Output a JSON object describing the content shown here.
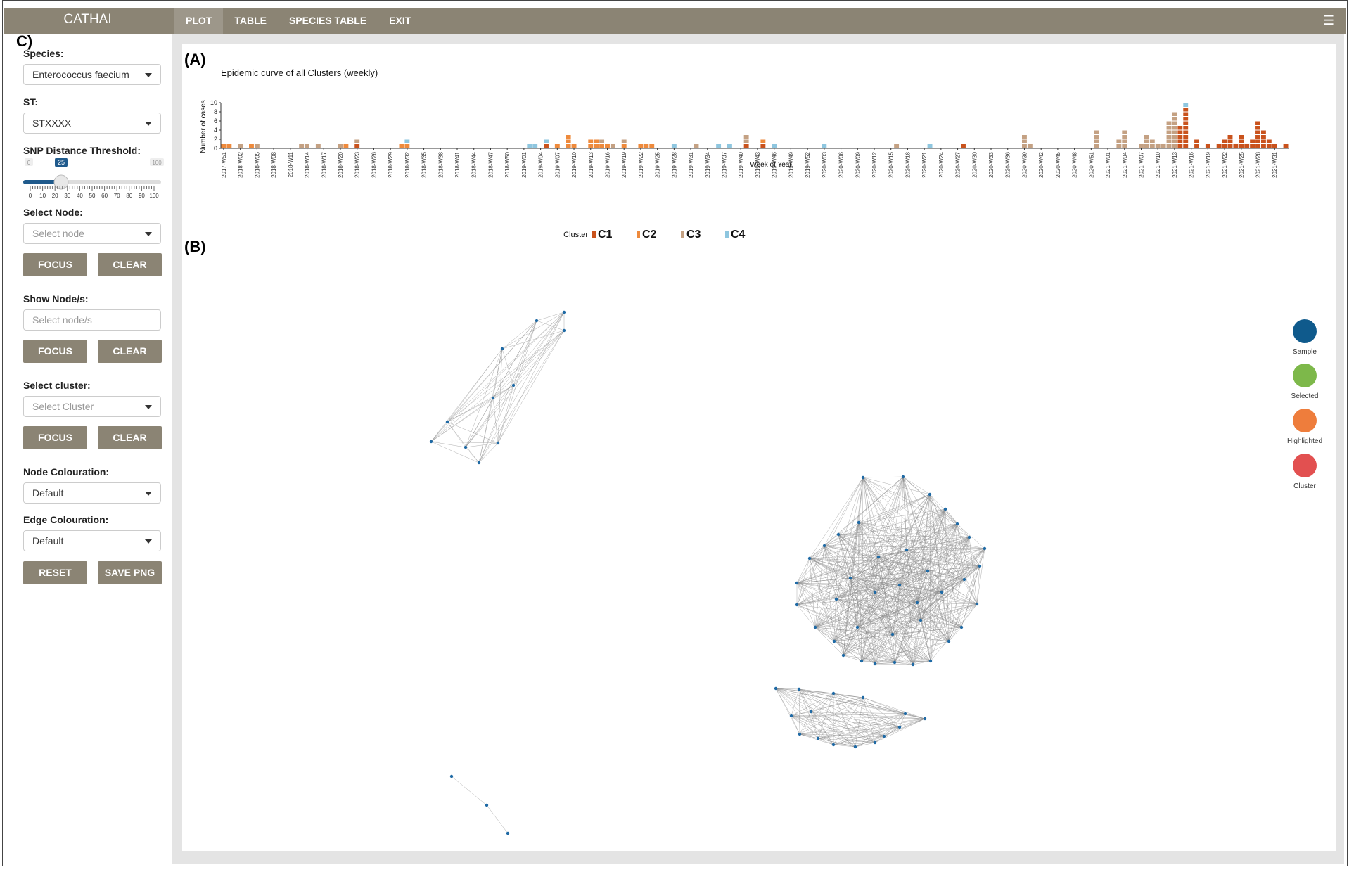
{
  "app": {
    "title": "CATHAI"
  },
  "nav": [
    {
      "label": "PLOT"
    },
    {
      "label": "TABLE"
    },
    {
      "label": "SPECIES TABLE"
    },
    {
      "label": "EXIT"
    }
  ],
  "panel_tags": {
    "a": "(A)",
    "b": "(B)",
    "c": "C)"
  },
  "sidebar": {
    "species": {
      "label": "Species:",
      "value": "Enterococcus faecium"
    },
    "st": {
      "label": "ST:",
      "value": "STXXXX"
    },
    "snp": {
      "label": "SNP Distance Threshold:",
      "min": "0",
      "max": "100",
      "value": "25",
      "value_num": 25,
      "ticks": [
        "0",
        "10",
        "20",
        "30",
        "40",
        "50",
        "60",
        "70",
        "80",
        "90",
        "100"
      ]
    },
    "select_node": {
      "label": "Select Node:",
      "placeholder": "Select node"
    },
    "show_nodes": {
      "label": "Show Node/s:",
      "placeholder": "Select node/s"
    },
    "select_cluster": {
      "label": "Select cluster:",
      "placeholder": "Select Cluster"
    },
    "node_colouration": {
      "label": "Node Colouration:",
      "value": "Default"
    },
    "edge_colouration": {
      "label": "Edge Colouration:",
      "value": "Default"
    },
    "buttons": {
      "focus": "FOCUS",
      "clear": "CLEAR",
      "reset": "RESET",
      "save_png": "SAVE PNG"
    }
  },
  "legend_nodes": [
    {
      "label": "Sample",
      "color": "#0f5a8c"
    },
    {
      "label": "Selected",
      "color": "#7db84a"
    },
    {
      "label": "Highlighted",
      "color": "#ee7d3c"
    },
    {
      "label": "Cluster",
      "color": "#e25050"
    }
  ],
  "chart_data": {
    "type": "bar",
    "stacked": true,
    "title": "Epidemic curve of all Clusters (weekly)",
    "xlabel": "Week of Year",
    "ylabel": "Number of cases",
    "ylim": [
      0,
      10
    ],
    "yticks": [
      0,
      2,
      4,
      6,
      8,
      10
    ],
    "x_tick_labels": [
      "2017-W51",
      "2018-W02",
      "2018-W05",
      "2018-W08",
      "2018-W11",
      "2018-W14",
      "2018-W17",
      "2018-W20",
      "2018-W23",
      "2018-W26",
      "2018-W29",
      "2018-W32",
      "2018-W35",
      "2018-W38",
      "2018-W41",
      "2018-W44",
      "2018-W47",
      "2018-W50",
      "2019-W01",
      "2019-W04",
      "2019-W07",
      "2019-W10",
      "2019-W13",
      "2019-W16",
      "2019-W19",
      "2019-W22",
      "2019-W25",
      "2019-W28",
      "2019-W31",
      "2019-W34",
      "2019-W37",
      "2019-W40",
      "2019-W43",
      "2019-W46",
      "2019-W49",
      "2019-W52",
      "2020-W03",
      "2020-W06",
      "2020-W09",
      "2020-W12",
      "2020-W15",
      "2020-W18",
      "2020-W21",
      "2020-W24",
      "2020-W27",
      "2020-W30",
      "2020-W33",
      "2020-W36",
      "2020-W39",
      "2020-W42",
      "2020-W45",
      "2020-W48",
      "2020-W51",
      "2021-W01",
      "2021-W04",
      "2021-W07",
      "2021-W10",
      "2021-W13",
      "2021-W16",
      "2021-W19",
      "2021-W22",
      "2021-W25",
      "2021-W28",
      "2021-W31"
    ],
    "legend_title": "Cluster",
    "colors": {
      "C1": "#c9521c",
      "C2": "#ee8a3c",
      "C3": "#c4a183",
      "C4": "#8ec6df"
    },
    "series_names": [
      "C1",
      "C2",
      "C3",
      "C4"
    ],
    "bars": [
      {
        "week": "2017-W51",
        "C1": 0,
        "C2": 1,
        "C3": 0,
        "C4": 0
      },
      {
        "week": "2017-W52",
        "C1": 0,
        "C2": 1,
        "C3": 0,
        "C4": 0
      },
      {
        "week": "2018-W02",
        "C1": 0,
        "C2": 0,
        "C3": 1,
        "C4": 0
      },
      {
        "week": "2018-W04",
        "C1": 0,
        "C2": 1,
        "C3": 0,
        "C4": 0
      },
      {
        "week": "2018-W05",
        "C1": 0,
        "C2": 0,
        "C3": 1,
        "C4": 0
      },
      {
        "week": "2018-W13",
        "C1": 0,
        "C2": 0,
        "C3": 1,
        "C4": 0
      },
      {
        "week": "2018-W14",
        "C1": 0,
        "C2": 0,
        "C3": 1,
        "C4": 0
      },
      {
        "week": "2018-W16",
        "C1": 0,
        "C2": 0,
        "C3": 1,
        "C4": 0
      },
      {
        "week": "2018-W20",
        "C1": 0,
        "C2": 0,
        "C3": 1,
        "C4": 0
      },
      {
        "week": "2018-W21",
        "C1": 0,
        "C2": 1,
        "C3": 0,
        "C4": 0
      },
      {
        "week": "2018-W23",
        "C1": 1,
        "C2": 0,
        "C3": 1,
        "C4": 0
      },
      {
        "week": "2018-W31",
        "C1": 0,
        "C2": 1,
        "C3": 0,
        "C4": 0
      },
      {
        "week": "2018-W32",
        "C1": 0,
        "C2": 1,
        "C3": 0,
        "C4": 1
      },
      {
        "week": "2019-W02",
        "C1": 0,
        "C2": 0,
        "C3": 0,
        "C4": 1
      },
      {
        "week": "2019-W03",
        "C1": 0,
        "C2": 0,
        "C3": 0,
        "C4": 1
      },
      {
        "week": "2019-W05",
        "C1": 1,
        "C2": 0,
        "C3": 0,
        "C4": 1
      },
      {
        "week": "2019-W07",
        "C1": 0,
        "C2": 1,
        "C3": 0,
        "C4": 0
      },
      {
        "week": "2019-W09",
        "C1": 0,
        "C2": 3,
        "C3": 0,
        "C4": 0
      },
      {
        "week": "2019-W10",
        "C1": 0,
        "C2": 1,
        "C3": 0,
        "C4": 0
      },
      {
        "week": "2019-W13",
        "C1": 0,
        "C2": 2,
        "C3": 0,
        "C4": 0
      },
      {
        "week": "2019-W14",
        "C1": 0,
        "C2": 2,
        "C3": 0,
        "C4": 0
      },
      {
        "week": "2019-W15",
        "C1": 0,
        "C2": 1,
        "C3": 1,
        "C4": 0
      },
      {
        "week": "2019-W16",
        "C1": 0,
        "C2": 1,
        "C3": 0,
        "C4": 0
      },
      {
        "week": "2019-W17",
        "C1": 0,
        "C2": 0,
        "C3": 1,
        "C4": 0
      },
      {
        "week": "2019-W19",
        "C1": 0,
        "C2": 1,
        "C3": 1,
        "C4": 0
      },
      {
        "week": "2019-W22",
        "C1": 0,
        "C2": 1,
        "C3": 0,
        "C4": 0
      },
      {
        "week": "2019-W23",
        "C1": 0,
        "C2": 1,
        "C3": 0,
        "C4": 0
      },
      {
        "week": "2019-W24",
        "C1": 0,
        "C2": 1,
        "C3": 0,
        "C4": 0
      },
      {
        "week": "2019-W28",
        "C1": 0,
        "C2": 0,
        "C3": 0,
        "C4": 1
      },
      {
        "week": "2019-W32",
        "C1": 0,
        "C2": 0,
        "C3": 1,
        "C4": 0
      },
      {
        "week": "2019-W36",
        "C1": 0,
        "C2": 0,
        "C3": 0,
        "C4": 1
      },
      {
        "week": "2019-W38",
        "C1": 0,
        "C2": 0,
        "C3": 0,
        "C4": 1
      },
      {
        "week": "2019-W41",
        "C1": 1,
        "C2": 0,
        "C3": 2,
        "C4": 0
      },
      {
        "week": "2019-W44",
        "C1": 1,
        "C2": 1,
        "C3": 0,
        "C4": 0
      },
      {
        "week": "2019-W46",
        "C1": 0,
        "C2": 0,
        "C3": 0,
        "C4": 1
      },
      {
        "week": "2020-W03",
        "C1": 0,
        "C2": 0,
        "C3": 0,
        "C4": 1
      },
      {
        "week": "2020-W16",
        "C1": 0,
        "C2": 0,
        "C3": 1,
        "C4": 0
      },
      {
        "week": "2020-W22",
        "C1": 0,
        "C2": 0,
        "C3": 0,
        "C4": 1
      },
      {
        "week": "2020-W28",
        "C1": 1,
        "C2": 0,
        "C3": 0,
        "C4": 0
      },
      {
        "week": "2020-W39",
        "C1": 0,
        "C2": 0,
        "C3": 3,
        "C4": 0
      },
      {
        "week": "2020-W40",
        "C1": 0,
        "C2": 0,
        "C3": 1,
        "C4": 0
      },
      {
        "week": "2020-W52",
        "C1": 0,
        "C2": 0,
        "C3": 4,
        "C4": 0
      },
      {
        "week": "2021-W03",
        "C1": 0,
        "C2": 0,
        "C3": 2,
        "C4": 0
      },
      {
        "week": "2021-W04",
        "C1": 0,
        "C2": 0,
        "C3": 4,
        "C4": 0
      },
      {
        "week": "2021-W07",
        "C1": 0,
        "C2": 0,
        "C3": 1,
        "C4": 0
      },
      {
        "week": "2021-W08",
        "C1": 0,
        "C2": 0,
        "C3": 3,
        "C4": 0
      },
      {
        "week": "2021-W09",
        "C1": 0,
        "C2": 0,
        "C3": 2,
        "C4": 0
      },
      {
        "week": "2021-W10",
        "C1": 0,
        "C2": 0,
        "C3": 1,
        "C4": 0
      },
      {
        "week": "2021-W11",
        "C1": 0,
        "C2": 0,
        "C3": 1,
        "C4": 0
      },
      {
        "week": "2021-W12",
        "C1": 0,
        "C2": 0,
        "C3": 6,
        "C4": 0
      },
      {
        "week": "2021-W13",
        "C1": 0,
        "C2": 0,
        "C3": 8,
        "C4": 0
      },
      {
        "week": "2021-W14",
        "C1": 5,
        "C2": 0,
        "C3": 0,
        "C4": 0
      },
      {
        "week": "2021-W15",
        "C1": 9,
        "C2": 0,
        "C3": 0,
        "C4": 1
      },
      {
        "week": "2021-W17",
        "C1": 2,
        "C2": 0,
        "C3": 0,
        "C4": 0
      },
      {
        "week": "2021-W19",
        "C1": 1,
        "C2": 0,
        "C3": 0,
        "C4": 0
      },
      {
        "week": "2021-W21",
        "C1": 1,
        "C2": 0,
        "C3": 0,
        "C4": 0
      },
      {
        "week": "2021-W22",
        "C1": 2,
        "C2": 0,
        "C3": 0,
        "C4": 0
      },
      {
        "week": "2021-W23",
        "C1": 3,
        "C2": 0,
        "C3": 0,
        "C4": 0
      },
      {
        "week": "2021-W24",
        "C1": 1,
        "C2": 0,
        "C3": 0,
        "C4": 0
      },
      {
        "week": "2021-W25",
        "C1": 3,
        "C2": 0,
        "C3": 0,
        "C4": 0
      },
      {
        "week": "2021-W26",
        "C1": 1,
        "C2": 0,
        "C3": 0,
        "C4": 0
      },
      {
        "week": "2021-W27",
        "C1": 2,
        "C2": 0,
        "C3": 0,
        "C4": 0
      },
      {
        "week": "2021-W28",
        "C1": 6,
        "C2": 0,
        "C3": 0,
        "C4": 0
      },
      {
        "week": "2021-W29",
        "C1": 4,
        "C2": 0,
        "C3": 0,
        "C4": 0
      },
      {
        "week": "2021-W30",
        "C1": 2,
        "C2": 0,
        "C3": 0,
        "C4": 0
      },
      {
        "week": "2021-W31",
        "C1": 1,
        "C2": 0,
        "C3": 0,
        "C4": 0
      },
      {
        "week": "2021-W33",
        "C1": 1,
        "C2": 0,
        "C3": 0,
        "C4": 0
      }
    ]
  }
}
